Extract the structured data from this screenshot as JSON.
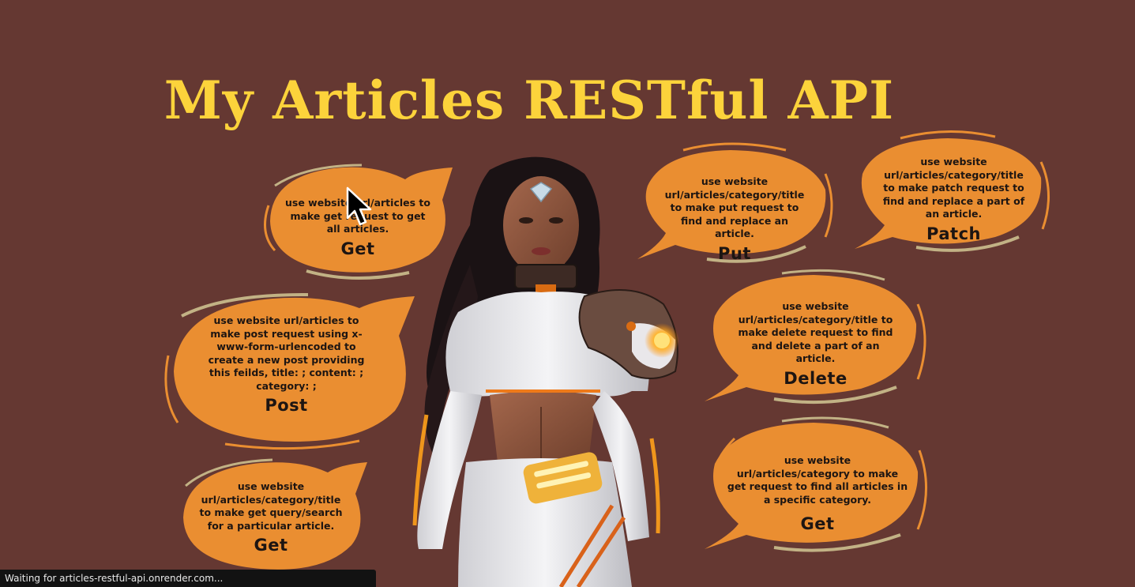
{
  "page": {
    "title": "My Articles RESTful API"
  },
  "colors": {
    "background": "#653832",
    "title": "#fcd33b",
    "bubble_fill": "#ea8e31",
    "bubble_rim": "#c2b285",
    "text": "#1d1512"
  },
  "bubbles": {
    "get_all": {
      "description": "use website url/articles to make get request to get all articles.",
      "method": "Get"
    },
    "post": {
      "description": "use website url/articles to make post request using x-www-form-urlencoded to create a new post providing this feilds, title: ; content: ; category: ;",
      "method": "Post"
    },
    "get_query": {
      "description": "use website url/articles/category/title to make get query/search for a particular article.",
      "method": "Get"
    },
    "put": {
      "description": "use website url/articles/category/title to make put request to find and replace an article.",
      "method": "Put"
    },
    "patch": {
      "description": "use website url/articles/category/title to make patch request to find and replace a part of an article.",
      "method": "Patch"
    },
    "delete": {
      "description": "use website url/articles/category/title to make delete request to find and delete a part of an article.",
      "method": "Delete"
    },
    "get_category": {
      "description": "use website url/articles/category to make get request to find all articles in a specific category.",
      "method": "Get"
    }
  },
  "icons": {
    "cursor": "mouse-pointer-icon",
    "figure": "sci-fi-woman-illustration"
  },
  "status_bar": {
    "text": "Waiting for articles-restful-api.onrender.com..."
  }
}
